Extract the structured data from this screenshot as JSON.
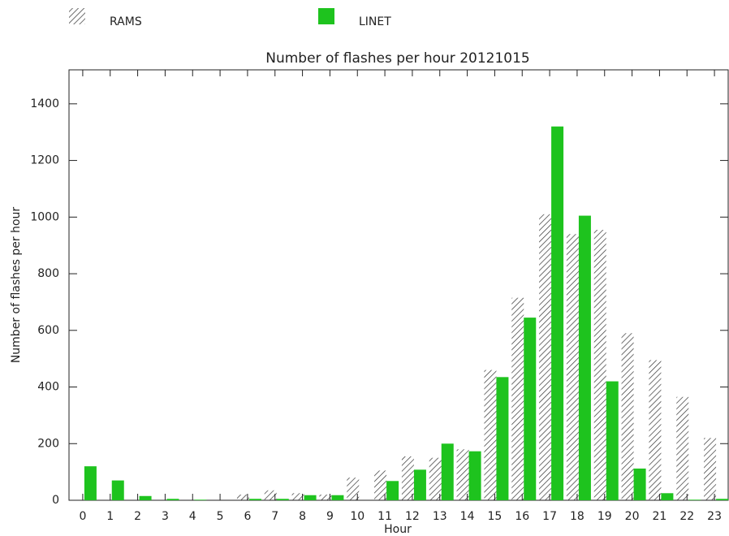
{
  "chart_data": {
    "type": "bar",
    "title": "Number of flashes per hour 20121015",
    "x_label": "Hour",
    "y_label": "Number of flashes per hour",
    "categories": [
      "0",
      "1",
      "2",
      "3",
      "4",
      "5",
      "6",
      "7",
      "8",
      "9",
      "10",
      "11",
      "12",
      "13",
      "14",
      "15",
      "16",
      "17",
      "18",
      "19",
      "20",
      "21",
      "22",
      "23"
    ],
    "series": [
      {
        "name": "RAMS",
        "color": "#333333",
        "pattern": "hatch",
        "values": [
          0,
          0,
          0,
          0,
          0,
          0,
          20,
          35,
          25,
          20,
          80,
          105,
          155,
          150,
          180,
          460,
          715,
          1010,
          940,
          955,
          590,
          495,
          365,
          220
        ]
      },
      {
        "name": "LINET",
        "color": "#1ec31e",
        "values": [
          120,
          70,
          15,
          5,
          2,
          0,
          5,
          5,
          18,
          18,
          0,
          68,
          108,
          200,
          173,
          435,
          645,
          1320,
          1005,
          420,
          112,
          25,
          2,
          5
        ]
      }
    ],
    "ylim": [
      0,
      1520
    ],
    "yticks": [
      0,
      200,
      400,
      600,
      800,
      1000,
      1200,
      1400
    ],
    "grid": false,
    "legend": "top"
  }
}
